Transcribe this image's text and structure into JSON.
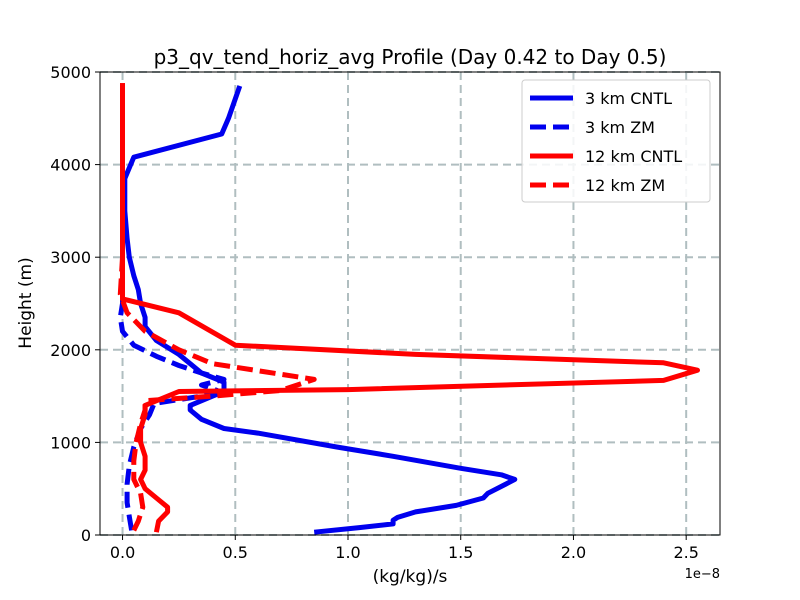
{
  "chart_data": {
    "type": "line",
    "title": "p3_qv_tend_horiz_avg Profile (Day 0.42 to Day 0.5)",
    "xlabel": "(kg/kg)/s",
    "ylabel": "Height (m)",
    "x_offset_text": "1e−8",
    "xlim": [
      -0.1,
      2.65
    ],
    "ylim": [
      0,
      5000
    ],
    "x_ticks": [
      0.0,
      0.5,
      1.0,
      1.5,
      2.0,
      2.5
    ],
    "x_tick_labels": [
      "0.0",
      "0.5",
      "1.0",
      "1.5",
      "2.0",
      "2.5"
    ],
    "y_ticks": [
      0,
      1000,
      2000,
      3000,
      4000,
      5000
    ],
    "y_tick_labels": [
      "0",
      "1000",
      "2000",
      "3000",
      "4000",
      "5000"
    ],
    "grid": true,
    "legend_position": "upper-right",
    "series": [
      {
        "name": "3 km CNTL",
        "color": "#0000ee",
        "dash": "solid",
        "points": [
          [
            0.85,
            30
          ],
          [
            1.05,
            80
          ],
          [
            1.2,
            120
          ],
          [
            1.2,
            160
          ],
          [
            1.22,
            190
          ],
          [
            1.3,
            250
          ],
          [
            1.48,
            320
          ],
          [
            1.6,
            400
          ],
          [
            1.62,
            450
          ],
          [
            1.7,
            550
          ],
          [
            1.74,
            600
          ],
          [
            1.68,
            650
          ],
          [
            1.5,
            720
          ],
          [
            1.2,
            850
          ],
          [
            0.95,
            950
          ],
          [
            0.6,
            1100
          ],
          [
            0.45,
            1150
          ],
          [
            0.35,
            1250
          ],
          [
            0.3,
            1350
          ],
          [
            0.3,
            1400
          ],
          [
            0.4,
            1500
          ],
          [
            0.45,
            1550
          ],
          [
            0.45,
            1650
          ],
          [
            0.35,
            1750
          ],
          [
            0.3,
            1850
          ],
          [
            0.25,
            1950
          ],
          [
            0.15,
            2100
          ],
          [
            0.1,
            2250
          ],
          [
            0.1,
            2350
          ],
          [
            0.08,
            2500
          ],
          [
            0.07,
            2650
          ],
          [
            0.05,
            2800
          ],
          [
            0.03,
            3000
          ],
          [
            0.02,
            3200
          ],
          [
            0.01,
            3500
          ],
          [
            0.01,
            3850
          ],
          [
            0.05,
            4080
          ],
          [
            0.44,
            4330
          ],
          [
            0.47,
            4500
          ],
          [
            0.52,
            4850
          ]
        ]
      },
      {
        "name": "3 km ZM",
        "color": "#0000ee",
        "dash": "dashed",
        "points": [
          [
            0.04,
            50
          ],
          [
            0.03,
            200
          ],
          [
            0.02,
            350
          ],
          [
            0.02,
            550
          ],
          [
            0.03,
            750
          ],
          [
            0.05,
            950
          ],
          [
            0.08,
            1150
          ],
          [
            0.12,
            1300
          ],
          [
            0.14,
            1420
          ],
          [
            0.35,
            1500
          ],
          [
            0.42,
            1560
          ],
          [
            0.35,
            1620
          ],
          [
            0.45,
            1680
          ],
          [
            0.35,
            1750
          ],
          [
            0.25,
            1830
          ],
          [
            0.15,
            1930
          ],
          [
            0.05,
            2050
          ],
          [
            0.0,
            2200
          ],
          [
            -0.01,
            2350
          ],
          [
            0.0,
            2500
          ],
          [
            0.0,
            2600
          ]
        ]
      },
      {
        "name": "12 km CNTL",
        "color": "#ff0000",
        "dash": "solid",
        "points": [
          [
            0.15,
            30
          ],
          [
            0.16,
            150
          ],
          [
            0.2,
            250
          ],
          [
            0.2,
            300
          ],
          [
            0.15,
            400
          ],
          [
            0.1,
            500
          ],
          [
            0.08,
            600
          ],
          [
            0.1,
            700
          ],
          [
            0.1,
            850
          ],
          [
            0.08,
            1000
          ],
          [
            0.08,
            1150
          ],
          [
            0.1,
            1300
          ],
          [
            0.1,
            1400
          ],
          [
            0.25,
            1550
          ],
          [
            1.0,
            1570
          ],
          [
            2.4,
            1670
          ],
          [
            2.55,
            1780
          ],
          [
            2.4,
            1860
          ],
          [
            1.3,
            1950
          ],
          [
            0.5,
            2050
          ],
          [
            0.25,
            2400
          ],
          [
            0.0,
            2550
          ],
          [
            0.0,
            2700
          ],
          [
            0.0,
            3000
          ],
          [
            0.0,
            3500
          ],
          [
            0.0,
            4000
          ],
          [
            0.0,
            4500
          ],
          [
            0.0,
            4880
          ]
        ]
      },
      {
        "name": "12 km ZM",
        "color": "#ff0000",
        "dash": "dashed",
        "points": [
          [
            0.05,
            50
          ],
          [
            0.07,
            150
          ],
          [
            0.09,
            300
          ],
          [
            0.08,
            450
          ],
          [
            0.05,
            600
          ],
          [
            0.05,
            800
          ],
          [
            0.06,
            1000
          ],
          [
            0.08,
            1200
          ],
          [
            0.1,
            1350
          ],
          [
            0.1,
            1450
          ],
          [
            0.4,
            1500
          ],
          [
            0.7,
            1560
          ],
          [
            0.85,
            1680
          ],
          [
            0.4,
            1850
          ],
          [
            0.25,
            2000
          ],
          [
            0.1,
            2200
          ],
          [
            0.02,
            2400
          ],
          [
            -0.01,
            2600
          ],
          [
            0.0,
            3000
          ],
          [
            0.0,
            3500
          ],
          [
            0.0,
            4000
          ],
          [
            0.0,
            4500
          ],
          [
            0.0,
            4880
          ]
        ]
      }
    ]
  }
}
